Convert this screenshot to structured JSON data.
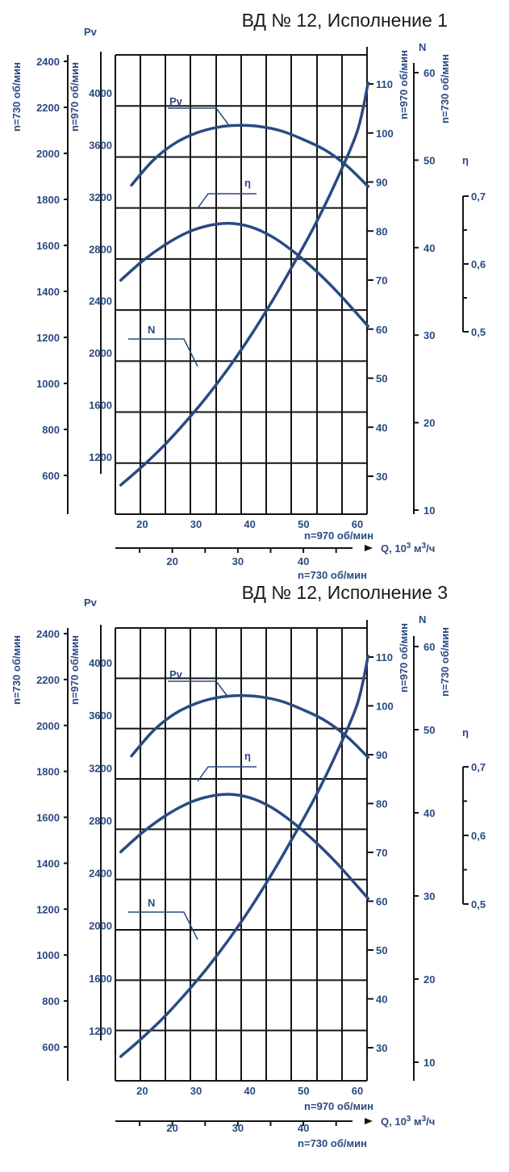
{
  "colors": {
    "curve": "#2a4a82",
    "grid": "#141414",
    "text": "#2a4a82"
  },
  "chart_data": [
    {
      "type": "line",
      "title": "ВД  № 12, Исполнение 1",
      "x_axis_970": {
        "label": "n=970 об/мин",
        "ticks": [
          "20",
          "30",
          "40",
          "50",
          "60"
        ],
        "range": [
          15,
          63
        ]
      },
      "x_axis_730": {
        "label": "n=730 об/мин",
        "ticks": [
          "20",
          "30",
          "40"
        ],
        "range": [
          11.3,
          47.5
        ]
      },
      "q_label": {
        "prefix": "Q, 10",
        "sup1": "3",
        "mid": " м",
        "sup2": "3",
        "suffix": "/ч"
      },
      "pv_label": "Pv",
      "pv_730": {
        "label": "n=730 об/мин",
        "ticks": [
          "2400",
          "2200",
          "2000",
          "1800",
          "1600",
          "1400",
          "1200",
          "1000",
          "800",
          "600"
        ]
      },
      "pv_970": {
        "label": "n=970 об/мин",
        "ticks": [
          "4000",
          "3600",
          "3200",
          "2800",
          "2400",
          "2000",
          "1600",
          "1200"
        ],
        "range": [
          900,
          4300
        ]
      },
      "n_970": {
        "label": "n=970 об/мин",
        "ticks": [
          "110",
          "100",
          "90",
          "80",
          "70",
          "60",
          "50",
          "40",
          "30"
        ],
        "range": [
          23,
          117
        ]
      },
      "n_730": {
        "label": "n=730 об/мин",
        "ticks": [
          "60",
          "50",
          "40",
          "30",
          "20",
          "10"
        ]
      },
      "n_label": "N",
      "eta_label": "η",
      "eta": {
        "ticks": [
          "0,7",
          "0,6",
          "0,5"
        ],
        "range": [
          0.5,
          0.7
        ]
      },
      "series": [
        {
          "name": "Pv",
          "x": [
            18,
            22,
            26,
            30,
            34,
            38,
            42,
            46,
            50,
            54,
            58,
            62
          ],
          "y": [
            3290,
            3480,
            3610,
            3690,
            3735,
            3750,
            3740,
            3705,
            3640,
            3560,
            3440,
            3280
          ]
        },
        {
          "name": "η",
          "x": [
            16,
            20,
            24,
            28,
            32,
            36,
            40,
            44,
            48,
            52,
            56,
            60,
            62
          ],
          "y": [
            0.576,
            0.604,
            0.627,
            0.645,
            0.656,
            0.66,
            0.655,
            0.641,
            0.619,
            0.592,
            0.561,
            0.526,
            0.508
          ]
        },
        {
          "name": "N",
          "x": [
            16,
            20,
            24,
            28,
            32,
            36,
            40,
            44,
            48,
            52,
            56,
            60,
            62
          ],
          "y": [
            28.2,
            32,
            36.2,
            41,
            46.2,
            52,
            58.4,
            65.4,
            73,
            81,
            90,
            100.4,
            110.2
          ]
        }
      ]
    },
    {
      "type": "line",
      "title": "ВД № 12, Исполнение 3",
      "x_axis_970": {
        "label": "n=970 об/мин",
        "ticks": [
          "20",
          "30",
          "40",
          "50",
          "60"
        ],
        "range": [
          15,
          63
        ]
      },
      "x_axis_730": {
        "label": "n=730 об/мин",
        "ticks": [
          "20",
          "30",
          "40"
        ],
        "range": [
          11.3,
          47.5
        ]
      },
      "q_label": {
        "prefix": "Q, 10",
        "sup1": "3",
        "mid": " м",
        "sup2": "3",
        "suffix": "/ч"
      },
      "pv_label": "Pv",
      "pv_730": {
        "label": "n=730 об/мин",
        "ticks": [
          "2400",
          "2200",
          "2000",
          "1800",
          "1600",
          "1400",
          "1200",
          "1000",
          "800",
          "600"
        ]
      },
      "pv_970": {
        "label": "n=970 об/мин",
        "ticks": [
          "4000",
          "3600",
          "3200",
          "2800",
          "2400",
          "2000",
          "1600",
          "1200"
        ],
        "range": [
          900,
          4300
        ]
      },
      "n_970": {
        "label": "n=970 об/мин",
        "ticks": [
          "110",
          "100",
          "90",
          "80",
          "70",
          "60",
          "50",
          "40",
          "30"
        ],
        "range": [
          23,
          117
        ]
      },
      "n_730": {
        "label": "n=730 об/мин",
        "ticks": [
          "60",
          "50",
          "40",
          "30",
          "20",
          "10"
        ]
      },
      "n_label": "N",
      "eta_label": "η",
      "eta": {
        "ticks": [
          "0,7",
          "0,6",
          "0,5"
        ],
        "range": [
          0.5,
          0.7
        ]
      },
      "series": [
        {
          "name": "Pv",
          "x": [
            18,
            22,
            26,
            30,
            34,
            38,
            42,
            46,
            50,
            54,
            58,
            62
          ],
          "y": [
            3290,
            3480,
            3610,
            3690,
            3735,
            3750,
            3740,
            3705,
            3640,
            3560,
            3440,
            3280
          ]
        },
        {
          "name": "η",
          "x": [
            16,
            20,
            24,
            28,
            32,
            36,
            40,
            44,
            48,
            52,
            56,
            60,
            62
          ],
          "y": [
            0.576,
            0.604,
            0.627,
            0.645,
            0.656,
            0.66,
            0.655,
            0.641,
            0.619,
            0.592,
            0.561,
            0.526,
            0.508
          ]
        },
        {
          "name": "N",
          "x": [
            16,
            20,
            24,
            28,
            32,
            36,
            40,
            44,
            48,
            52,
            56,
            60,
            62
          ],
          "y": [
            28.2,
            32,
            36.2,
            41,
            46.2,
            52,
            58.4,
            65.4,
            73,
            81,
            90,
            100.4,
            110.2
          ]
        }
      ]
    }
  ]
}
